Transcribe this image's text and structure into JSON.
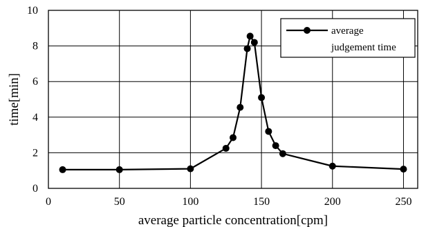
{
  "chart_data": {
    "type": "line",
    "title": "",
    "xlabel": "average particle concentration[cpm]",
    "ylabel": "time[min]",
    "xlim": [
      0,
      260
    ],
    "ylim": [
      0,
      10
    ],
    "x_ticks": [
      0,
      50,
      100,
      150,
      200,
      250
    ],
    "y_ticks": [
      0,
      2,
      4,
      6,
      8,
      10
    ],
    "grid": true,
    "legend_position": "top-right",
    "series": [
      {
        "name_lines": [
          "average",
          "judgement time"
        ],
        "color": "#000000",
        "marker": "circle",
        "x": [
          10,
          50,
          100,
          125,
          130,
          135,
          140,
          142,
          145,
          150,
          155,
          160,
          165,
          200,
          250
        ],
        "y": [
          1.05,
          1.05,
          1.1,
          2.25,
          2.85,
          4.55,
          7.85,
          8.55,
          8.2,
          5.1,
          3.2,
          2.4,
          1.95,
          1.25,
          1.08
        ]
      }
    ]
  }
}
